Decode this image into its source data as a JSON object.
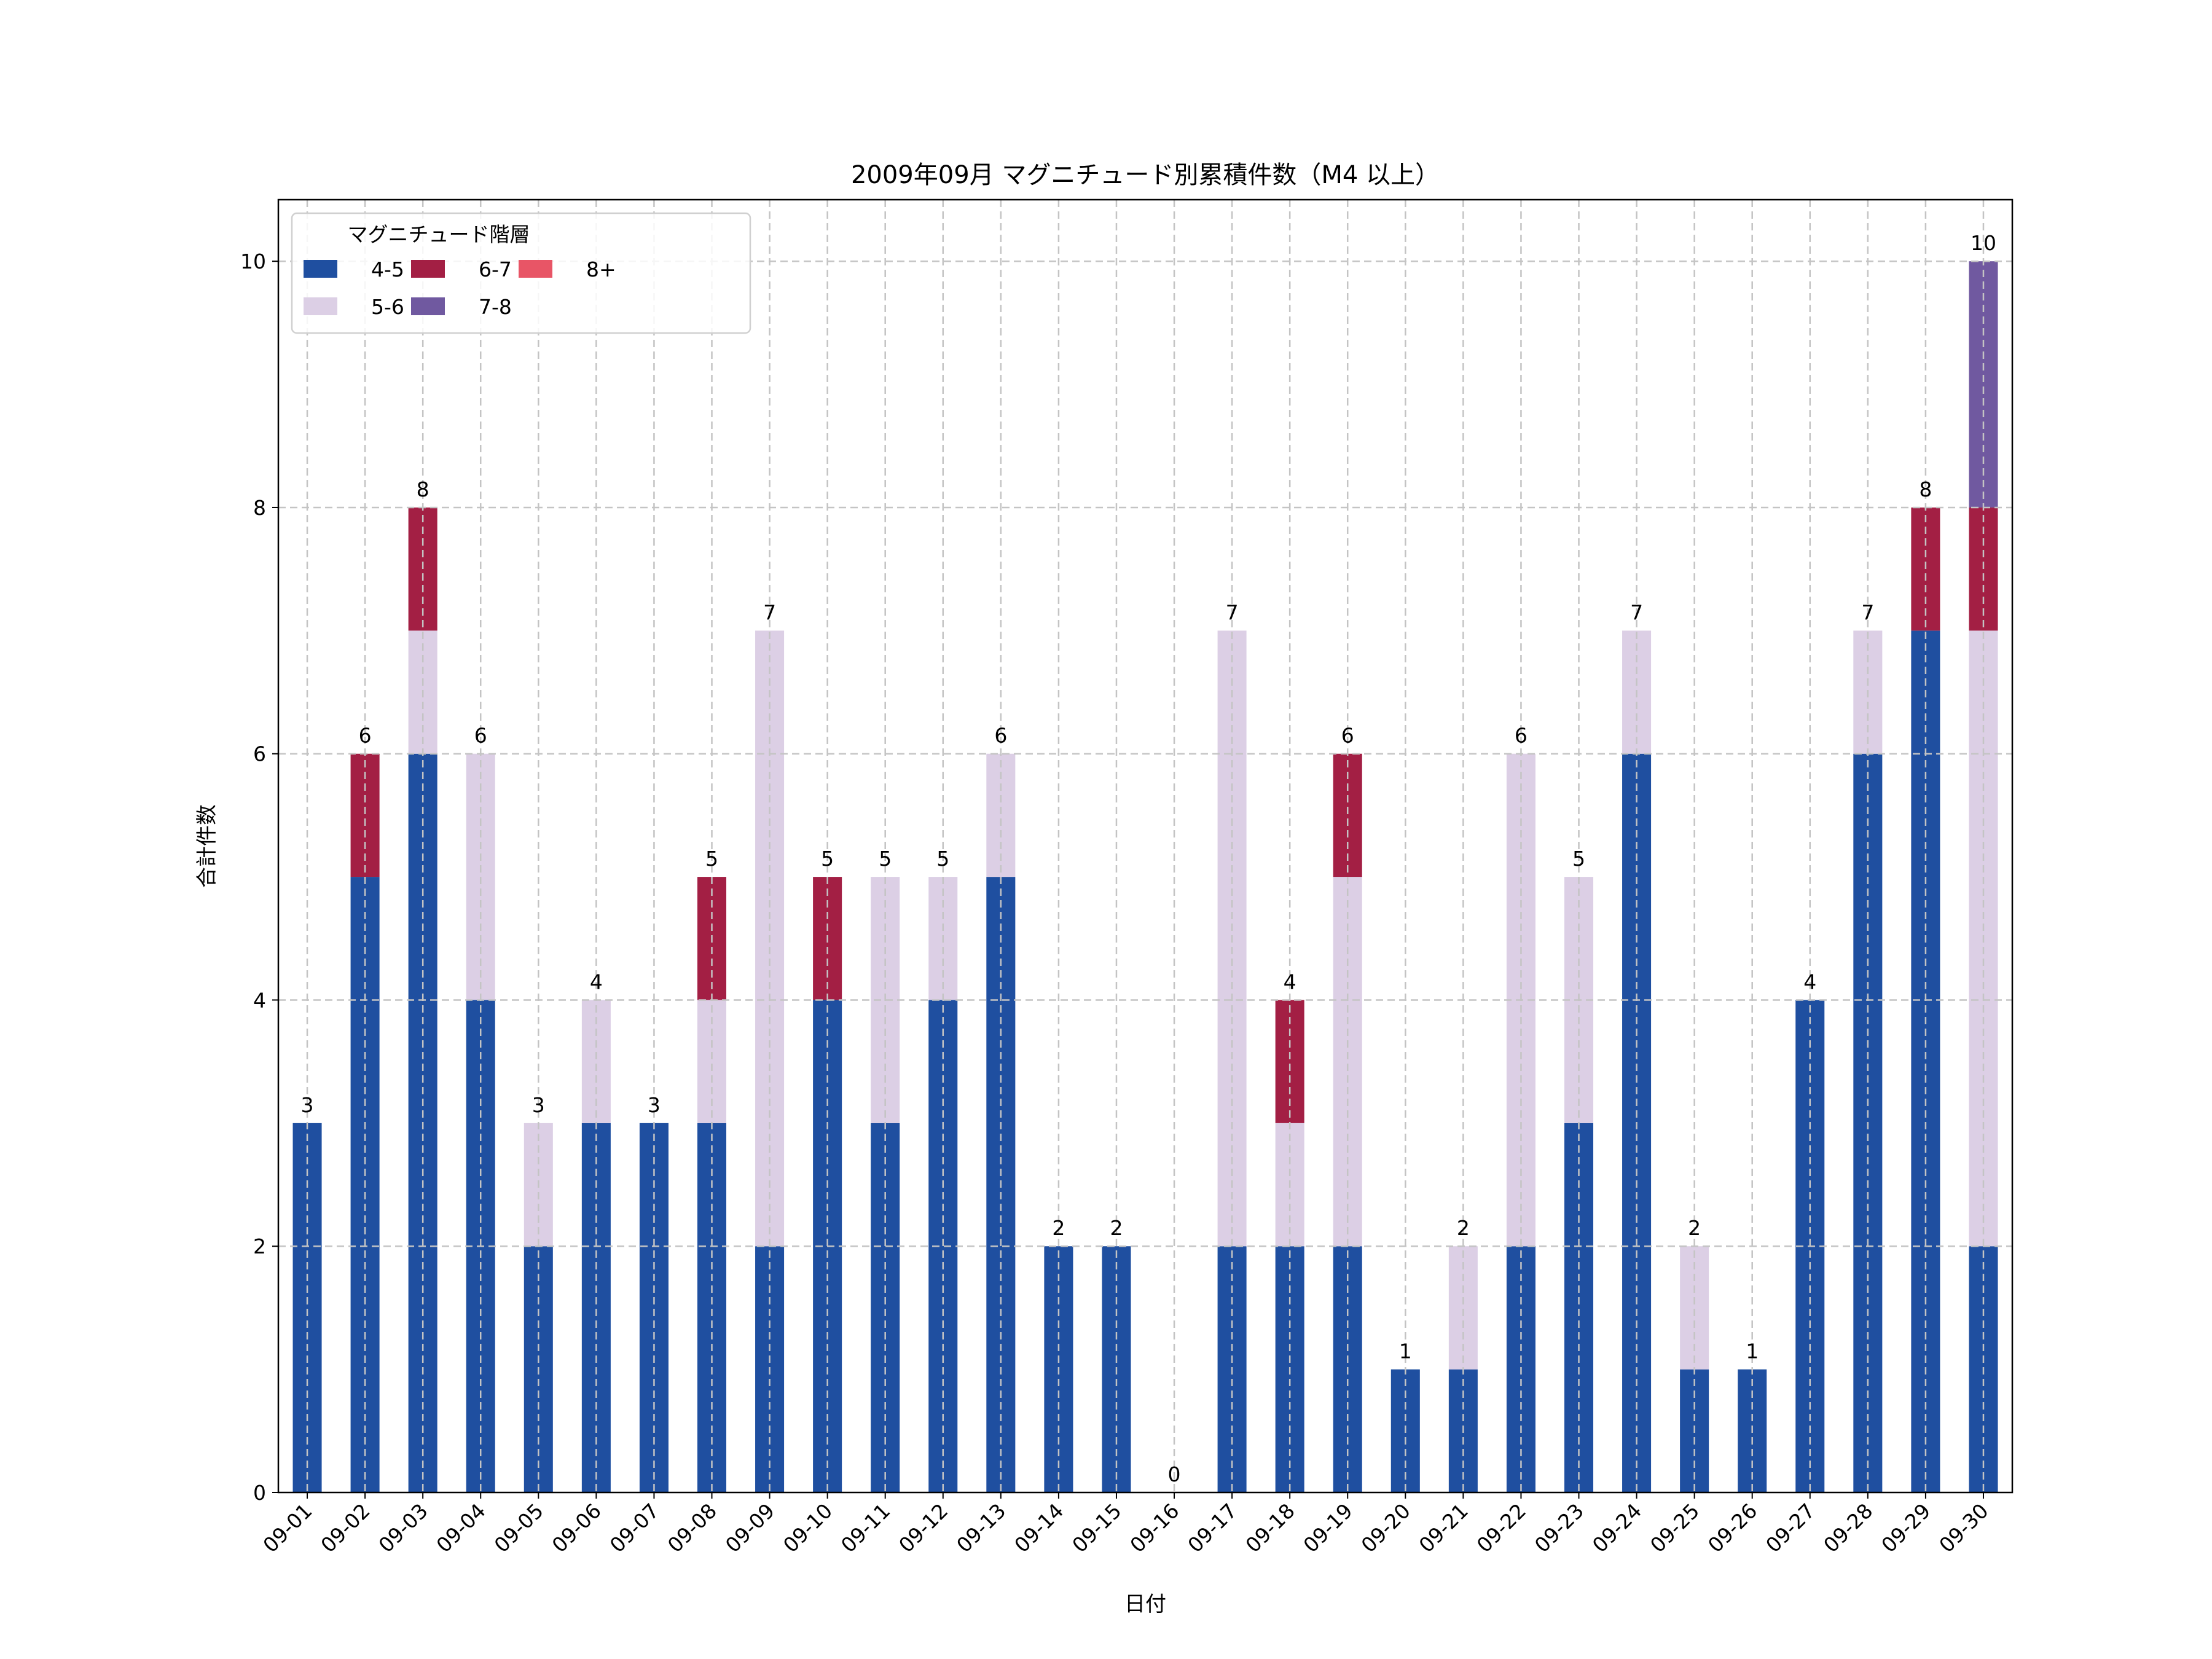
{
  "chart_data": {
    "type": "bar",
    "stacked": true,
    "title": "2009年09月 マグニチュード別累積件数（M4 以上）",
    "xlabel": "日付",
    "ylabel": "合計件数",
    "ylim": [
      0,
      10.5
    ],
    "yticks": [
      0,
      2,
      4,
      6,
      8,
      10
    ],
    "grid": true,
    "legend": {
      "title": "マグニチュード階層",
      "placement": "top-left"
    },
    "categories": [
      "09-01",
      "09-02",
      "09-03",
      "09-04",
      "09-05",
      "09-06",
      "09-07",
      "09-08",
      "09-09",
      "09-10",
      "09-11",
      "09-12",
      "09-13",
      "09-14",
      "09-15",
      "09-16",
      "09-17",
      "09-18",
      "09-19",
      "09-20",
      "09-21",
      "09-22",
      "09-23",
      "09-24",
      "09-25",
      "09-26",
      "09-27",
      "09-28",
      "09-29",
      "09-30"
    ],
    "series": [
      {
        "name": "4-5",
        "color": "#1f4fa0",
        "values": [
          3,
          5,
          6,
          4,
          2,
          3,
          3,
          3,
          2,
          4,
          3,
          4,
          5,
          2,
          2,
          0,
          2,
          2,
          2,
          1,
          1,
          2,
          3,
          6,
          1,
          1,
          4,
          6,
          7,
          2
        ]
      },
      {
        "name": "5-6",
        "color": "#dccfe5",
        "values": [
          0,
          0,
          1,
          2,
          1,
          1,
          0,
          1,
          5,
          0,
          2,
          1,
          1,
          0,
          0,
          0,
          5,
          1,
          3,
          0,
          1,
          4,
          2,
          1,
          1,
          0,
          0,
          1,
          0,
          5
        ]
      },
      {
        "name": "6-7",
        "color": "#a31f44",
        "values": [
          0,
          1,
          1,
          0,
          0,
          0,
          0,
          1,
          0,
          1,
          0,
          0,
          0,
          0,
          0,
          0,
          0,
          1,
          1,
          0,
          0,
          0,
          0,
          0,
          0,
          0,
          0,
          0,
          1,
          1
        ]
      },
      {
        "name": "7-8",
        "color": "#7059a0",
        "values": [
          0,
          0,
          0,
          0,
          0,
          0,
          0,
          0,
          0,
          0,
          0,
          0,
          0,
          0,
          0,
          0,
          0,
          0,
          0,
          0,
          0,
          0,
          0,
          0,
          0,
          0,
          0,
          0,
          0,
          2
        ]
      },
      {
        "name": "8+",
        "color": "#e85566",
        "values": [
          0,
          0,
          0,
          0,
          0,
          0,
          0,
          0,
          0,
          0,
          0,
          0,
          0,
          0,
          0,
          0,
          0,
          0,
          0,
          0,
          0,
          0,
          0,
          0,
          0,
          0,
          0,
          0,
          0,
          0
        ]
      }
    ],
    "totals": [
      3,
      6,
      8,
      6,
      3,
      4,
      3,
      5,
      7,
      5,
      5,
      5,
      6,
      2,
      2,
      0,
      7,
      4,
      6,
      1,
      2,
      6,
      5,
      7,
      2,
      1,
      4,
      7,
      8,
      10
    ]
  }
}
